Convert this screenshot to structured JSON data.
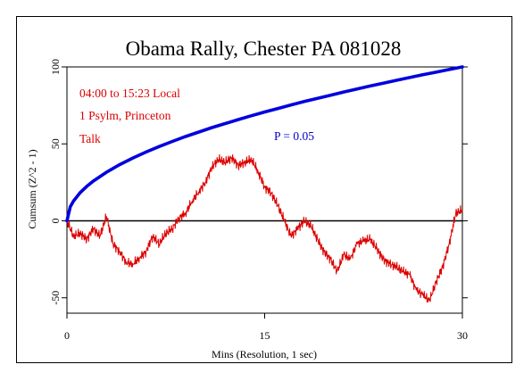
{
  "chart_data": {
    "type": "line",
    "title": "Obama Rally, Chester PA 081028",
    "xlabel": "Mins (Resolution, 1 sec)",
    "ylabel": "Cumsum (Z^2 - 1)",
    "xlim": [
      0,
      30
    ],
    "ylim": [
      -60,
      100
    ],
    "x_ticks": [
      0,
      15,
      30
    ],
    "y_ticks": [
      -50,
      0,
      50,
      100
    ],
    "grid": false,
    "annotations": {
      "time_range": "04:00 to 15:23 Local",
      "device": "1 Psylm, Princeton",
      "event": "Talk",
      "p_label": "P = 0.05"
    },
    "series": [
      {
        "role": "cumulative-deviation",
        "color": "#dd0000",
        "x": [
          0,
          0.5,
          1,
          1.5,
          2,
          2.5,
          3,
          3.5,
          4,
          4.5,
          5,
          5.5,
          6,
          6.5,
          7,
          7.5,
          8,
          8.5,
          9,
          9.5,
          10,
          10.5,
          11,
          11.5,
          12,
          12.5,
          13,
          13.5,
          14,
          14.5,
          15,
          15.5,
          16,
          16.5,
          17,
          17.5,
          18,
          18.5,
          19,
          19.5,
          20,
          20.5,
          21,
          21.5,
          22,
          22.5,
          23,
          23.5,
          24,
          24.5,
          25,
          25.5,
          26,
          26.5,
          27,
          27.5,
          28,
          28.5,
          29,
          29.5,
          30
        ],
        "y": [
          0,
          -10,
          -8,
          -12,
          -5,
          -10,
          3,
          -15,
          -20,
          -27,
          -28,
          -24,
          -20,
          -10,
          -15,
          -8,
          -5,
          2,
          5,
          13,
          19,
          25,
          35,
          40,
          38,
          41,
          36,
          38,
          40,
          32,
          22,
          18,
          10,
          0,
          -10,
          -5,
          0,
          -3,
          -12,
          -20,
          -25,
          -33,
          -22,
          -25,
          -15,
          -13,
          -12,
          -18,
          -25,
          -28,
          -30,
          -33,
          -35,
          -45,
          -48,
          -52,
          -40,
          -30,
          -15,
          5,
          7
        ]
      },
      {
        "role": "p-0.05-envelope",
        "color": "#0000dd",
        "name": "P = 0.05",
        "x": [
          0,
          0.25,
          0.5,
          1,
          1.5,
          2,
          3,
          4,
          5,
          6,
          7,
          8,
          9,
          10,
          11,
          12,
          13,
          14,
          15,
          16,
          17,
          18,
          19,
          20,
          21,
          22,
          23,
          24,
          25,
          26,
          27,
          28,
          29,
          30
        ],
        "y": [
          0,
          9.1,
          12.9,
          18.3,
          22.4,
          25.8,
          31.6,
          36.5,
          40.8,
          44.7,
          48.3,
          51.6,
          54.8,
          57.7,
          60.6,
          63.2,
          65.8,
          68.3,
          70.7,
          73.0,
          75.3,
          77.5,
          79.6,
          81.6,
          83.7,
          85.6,
          87.6,
          89.4,
          91.3,
          93.1,
          94.9,
          96.6,
          98.3,
          100
        ]
      }
    ]
  }
}
